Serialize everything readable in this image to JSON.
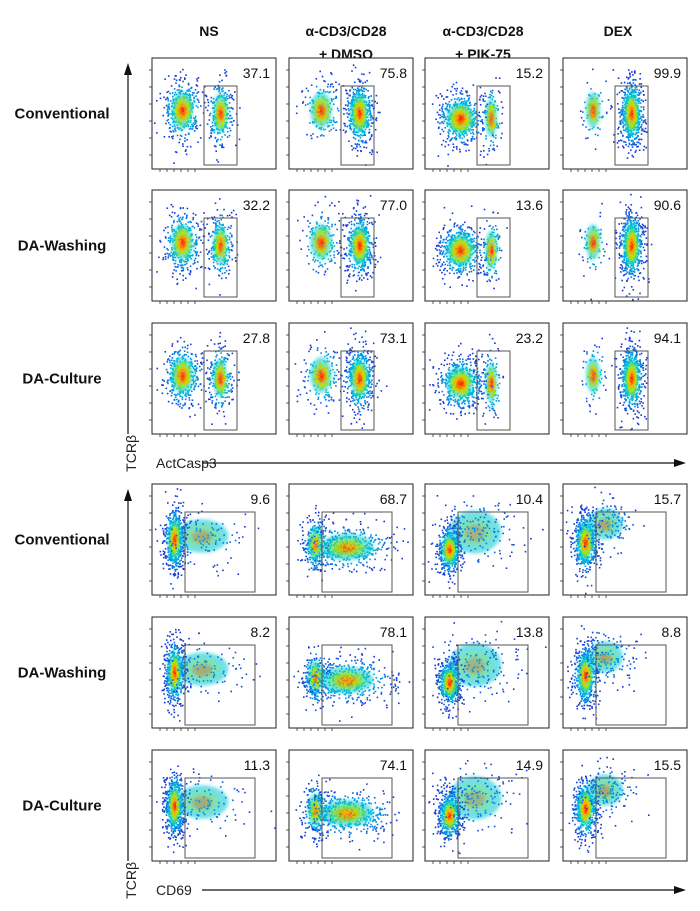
{
  "chart_data": {
    "type": "scatter",
    "column_headers": [
      {
        "line1": "NS",
        "line2": ""
      },
      {
        "line1": "α-CD3/CD28",
        "line2": "+ DMSO"
      },
      {
        "line1": "α-CD3/CD28",
        "line2": "+ PIK-75"
      },
      {
        "line1": "DEX",
        "line2": ""
      }
    ],
    "panels": [
      {
        "name": "actcasp3",
        "y_label": "TCRβ",
        "x_label": "ActCasp3",
        "rows": [
          {
            "label": "Conventional",
            "values": [
              "37.1",
              "75.8",
              "15.2",
              "99.9"
            ]
          },
          {
            "label": "DA-Washing",
            "values": [
              "32.2",
              "77.0",
              "13.6",
              "90.6"
            ]
          },
          {
            "label": "DA-Culture",
            "values": [
              "27.8",
              "73.1",
              "23.2",
              "94.1"
            ]
          }
        ]
      },
      {
        "name": "cd69",
        "y_label": "TCRβ",
        "x_label": "CD69",
        "rows": [
          {
            "label": "Conventional",
            "values": [
              "9.6",
              "68.7",
              "10.4",
              "15.7"
            ]
          },
          {
            "label": "DA-Washing",
            "values": [
              "8.2",
              "78.1",
              "13.8",
              "8.8"
            ]
          },
          {
            "label": "DA-Culture",
            "values": [
              "11.3",
              "74.1",
              "14.9",
              "15.5"
            ]
          }
        ]
      }
    ],
    "colors": {
      "low": "#1a2bd6",
      "mid": "#00c8d2",
      "high_mid": "#b4e600",
      "high": "#ff3000",
      "gate": "#555555"
    }
  }
}
